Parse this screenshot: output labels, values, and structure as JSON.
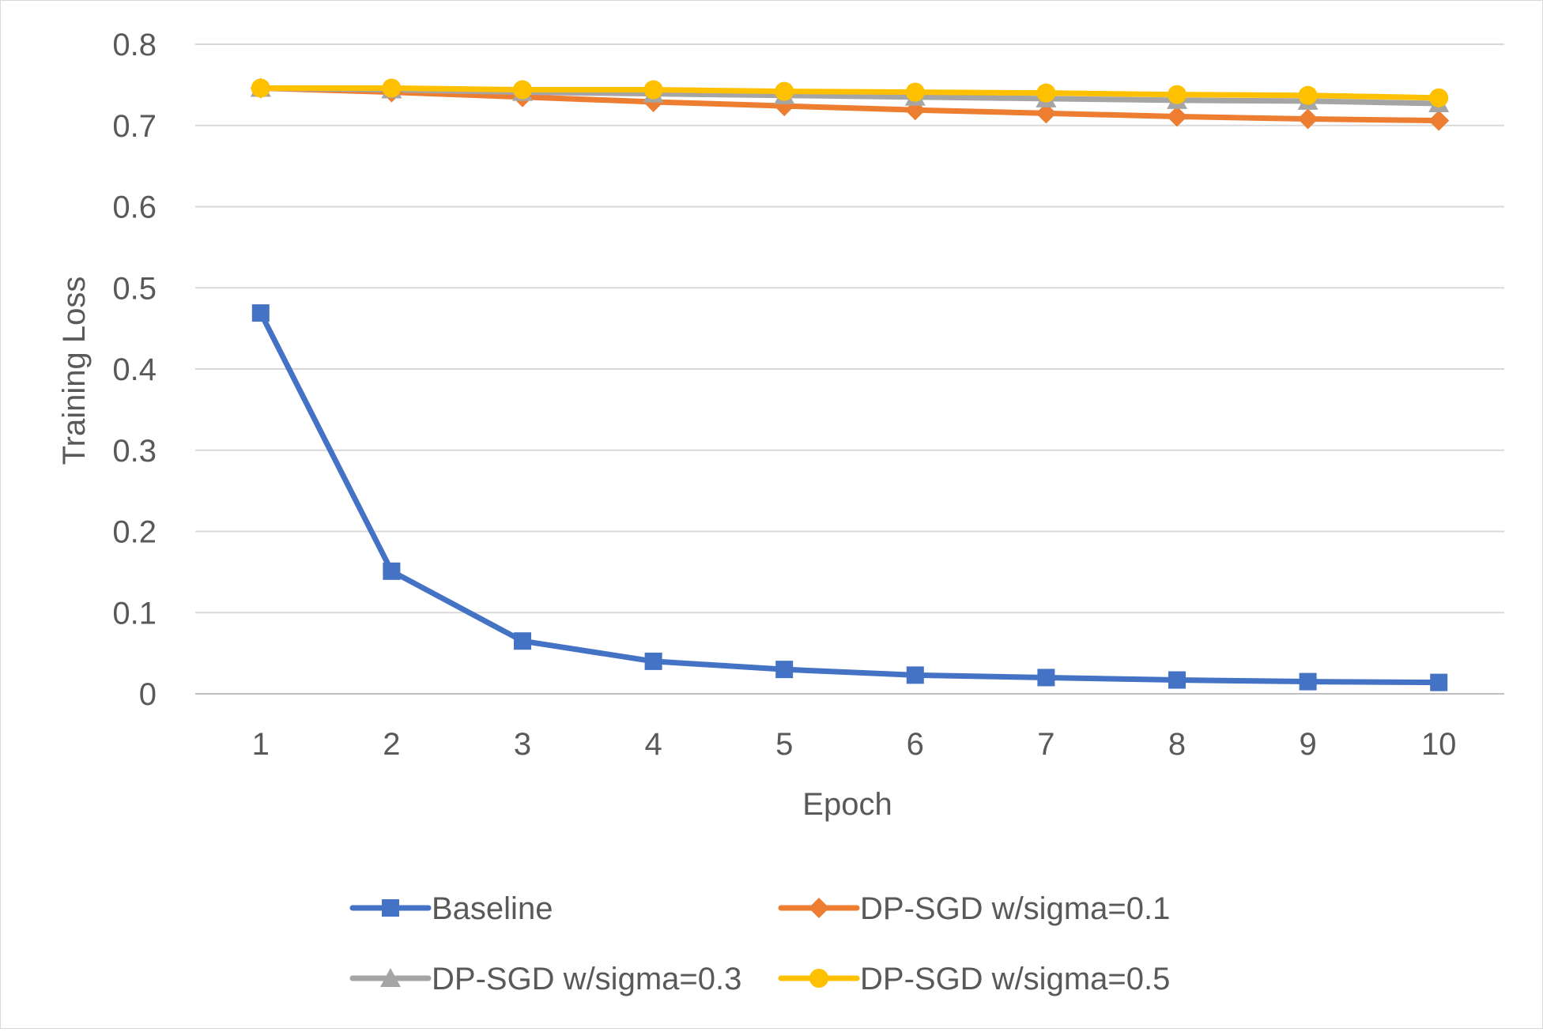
{
  "chart_data": {
    "type": "line",
    "title": "",
    "xlabel": "Epoch",
    "ylabel": "Training Loss",
    "ylim": [
      0,
      0.8
    ],
    "yticks": [
      "0",
      "0.1",
      "0.2",
      "0.3",
      "0.4",
      "0.5",
      "0.6",
      "0.7",
      "0.8"
    ],
    "x": [
      1,
      2,
      3,
      4,
      5,
      6,
      7,
      8,
      9,
      10
    ],
    "categories": [
      "1",
      "2",
      "3",
      "4",
      "5",
      "6",
      "7",
      "8",
      "9",
      "10"
    ],
    "grid": "horizontal",
    "legend": "bottom",
    "series": [
      {
        "name": "Baseline",
        "color": "#4472C4",
        "marker": "square",
        "values": [
          0.469,
          0.151,
          0.065,
          0.04,
          0.03,
          0.023,
          0.02,
          0.017,
          0.015,
          0.014
        ]
      },
      {
        "name": "DP-SGD w/sigma=0.1",
        "color": "#ED7D31",
        "marker": "diamond",
        "values": [
          0.746,
          0.741,
          0.735,
          0.729,
          0.724,
          0.719,
          0.715,
          0.711,
          0.708,
          0.706
        ]
      },
      {
        "name": "DP-SGD w/sigma=0.3",
        "color": "#A5A5A5",
        "marker": "triangle",
        "values": [
          0.746,
          0.744,
          0.741,
          0.739,
          0.737,
          0.735,
          0.733,
          0.731,
          0.73,
          0.727
        ]
      },
      {
        "name": "DP-SGD w/sigma=0.5",
        "color": "#FFC000",
        "marker": "circle",
        "values": [
          0.746,
          0.746,
          0.744,
          0.744,
          0.742,
          0.741,
          0.74,
          0.738,
          0.737,
          0.734
        ]
      }
    ]
  }
}
